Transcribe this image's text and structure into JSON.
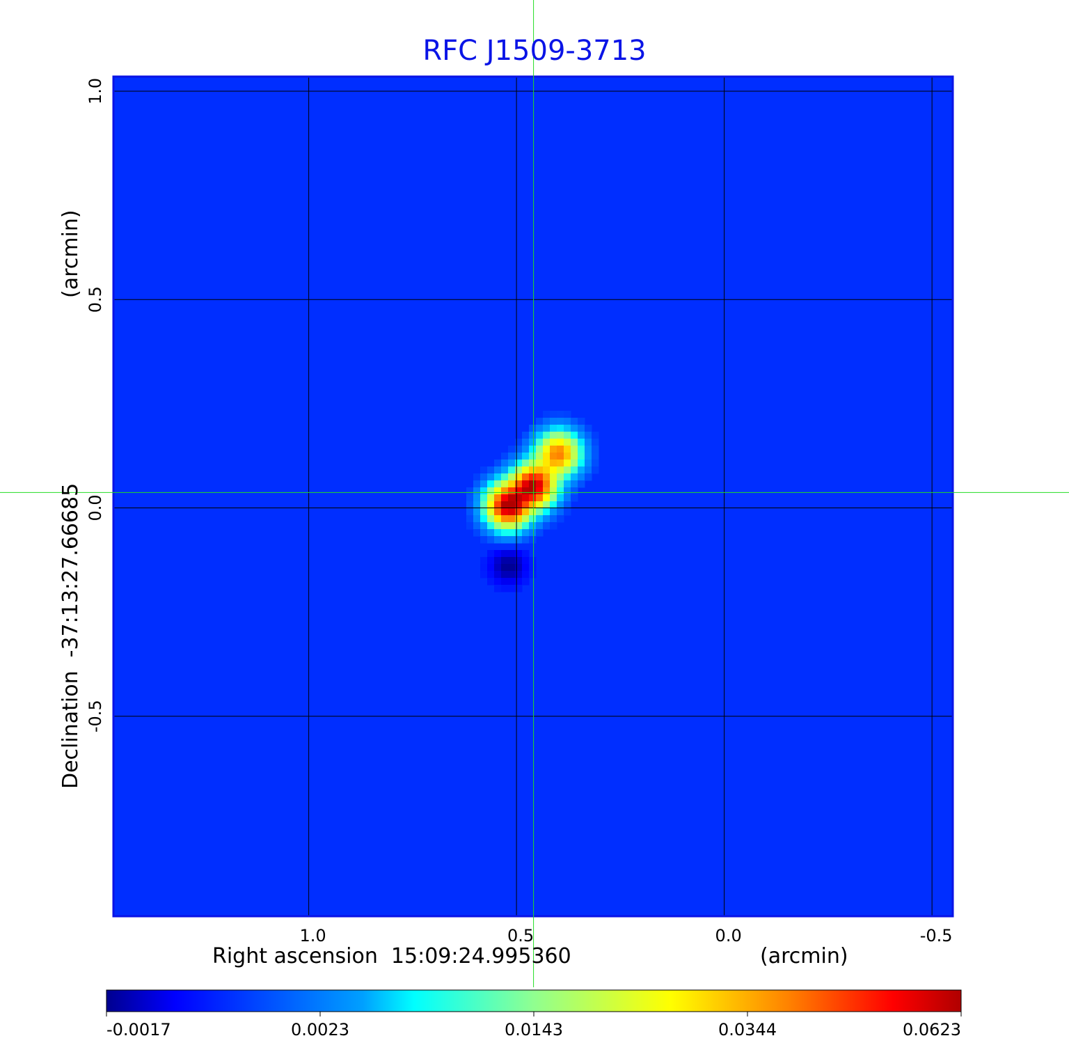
{
  "chart_data": {
    "type": "heatmap",
    "title": "RFC J1509-3713",
    "xlabel": "Right ascension  15:09:24.995360",
    "xunit": "(arcmin)",
    "ylabel": "Declination  -37:13:27.66685",
    "yunit": "(arcmin)",
    "x_ticks": [
      {
        "value": 1.0,
        "label": "1.0"
      },
      {
        "value": 0.5,
        "label": "0.5"
      },
      {
        "value": 0.0,
        "label": "0.0"
      },
      {
        "value": -0.5,
        "label": "-0.5"
      }
    ],
    "y_ticks": [
      {
        "value": 1.0,
        "label": "1.0"
      },
      {
        "value": 0.5,
        "label": "0.5"
      },
      {
        "value": 0.0,
        "label": "0.0"
      },
      {
        "value": -0.5,
        "label": "-0.5"
      }
    ],
    "xlim": [
      1.47,
      -0.55
    ],
    "ylim": [
      -0.98,
      1.035
    ],
    "grid": true,
    "crosshair": {
      "x": 0.459,
      "y": 0.037
    },
    "colormap": "jet",
    "colorbar": {
      "ticks": [
        "-0.0017",
        "0.0023",
        "0.0143",
        "0.0344",
        "0.0623"
      ],
      "values": [
        -0.0017,
        0.0023,
        0.0143,
        0.0344,
        0.0623
      ]
    },
    "background_level": 0.0006,
    "components": [
      {
        "x": 0.52,
        "y": 0.005,
        "peak": 0.0623
      },
      {
        "x": 0.459,
        "y": 0.052,
        "peak": 0.06
      },
      {
        "x": 0.399,
        "y": 0.13,
        "peak": 0.04
      },
      {
        "x": 0.52,
        "y": -0.14,
        "peak": -0.0017
      }
    ],
    "colors": {
      "title": "#0a14e6",
      "frame": "#0a14e6",
      "crosshair": "#22dd22",
      "grid": "#000000"
    }
  }
}
